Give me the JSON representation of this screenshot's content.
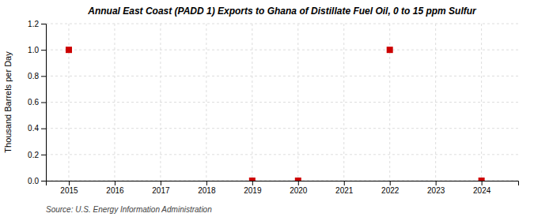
{
  "chart_data": {
    "type": "scatter",
    "title": "Annual East Coast (PADD 1) Exports to Ghana of Distillate Fuel Oil, 0 to 15 ppm Sulfur",
    "y_label": "Thousand Barrels per Day",
    "annotation": "Source: U.S. Energy Information Administration",
    "x": [
      2015,
      2019,
      2020,
      2022,
      2024
    ],
    "values": [
      1.0,
      0.0,
      0.0,
      1.0,
      0.0
    ],
    "color": "#cc0000",
    "marker": "square",
    "xlim": [
      2014.5,
      2024.8
    ],
    "ylim": [
      0.0,
      1.2
    ],
    "xticks": [
      2015,
      2016,
      2017,
      2018,
      2019,
      2020,
      2021,
      2022,
      2023,
      2024
    ],
    "yticks": [
      {
        "value": 0.0,
        "label": "0.0"
      },
      0.2,
      0.4,
      0.6,
      0.8,
      {
        "value": 1.0,
        "label": "1.0"
      },
      1.2
    ],
    "grid": true
  }
}
